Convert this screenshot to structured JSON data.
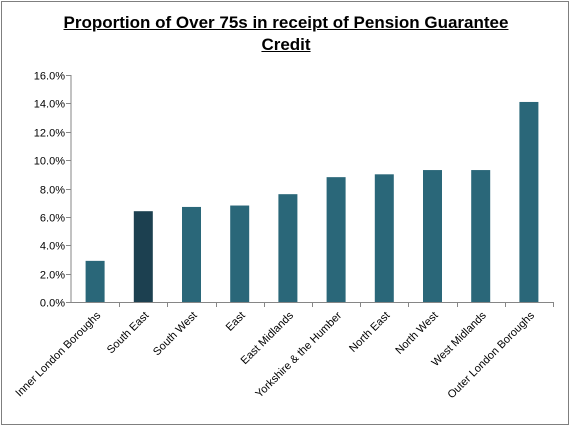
{
  "chart_data": {
    "type": "bar",
    "title": "Proportion of Over 75s in receipt of Pension Guarantee Credit",
    "xlabel": "",
    "ylabel": "",
    "ylim": [
      0,
      16
    ],
    "ytick_step": 2,
    "ytick_labels": [
      "0.0%",
      "2.0%",
      "4.0%",
      "6.0%",
      "8.0%",
      "10.0%",
      "12.0%",
      "14.0%",
      "16.0%"
    ],
    "categories": [
      "Inner London Boroughs",
      "South East",
      "South West",
      "East",
      "East Midlands",
      "Yorkshire & the Humber",
      "North East",
      "North West",
      "West Midlands",
      "Outer London Boroughs"
    ],
    "values": [
      2.9,
      6.4,
      6.7,
      6.8,
      7.6,
      8.8,
      9.0,
      9.3,
      9.3,
      14.1
    ],
    "grid": false,
    "legend": "none",
    "bar_color": "#2a6779",
    "highlight_color": "#1c4050",
    "highlight_category": "South East"
  }
}
